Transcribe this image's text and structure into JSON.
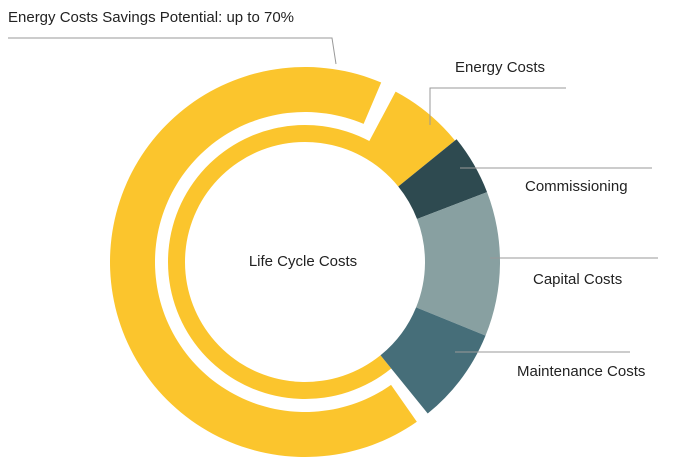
{
  "chart_data": {
    "type": "donut",
    "annotation": "Energy Costs Savings Potential: up to 70%",
    "center_label": "Life Cycle Costs",
    "categories": [
      "Energy Costs",
      "Commissioning",
      "Capital Costs",
      "Maintenance Costs"
    ],
    "values": [
      75,
      5,
      12,
      8
    ],
    "colors": [
      "#fbc52d",
      "#2e4a50",
      "#88a0a1",
      "#466e79"
    ],
    "highlight_color": "#fbc52d"
  }
}
